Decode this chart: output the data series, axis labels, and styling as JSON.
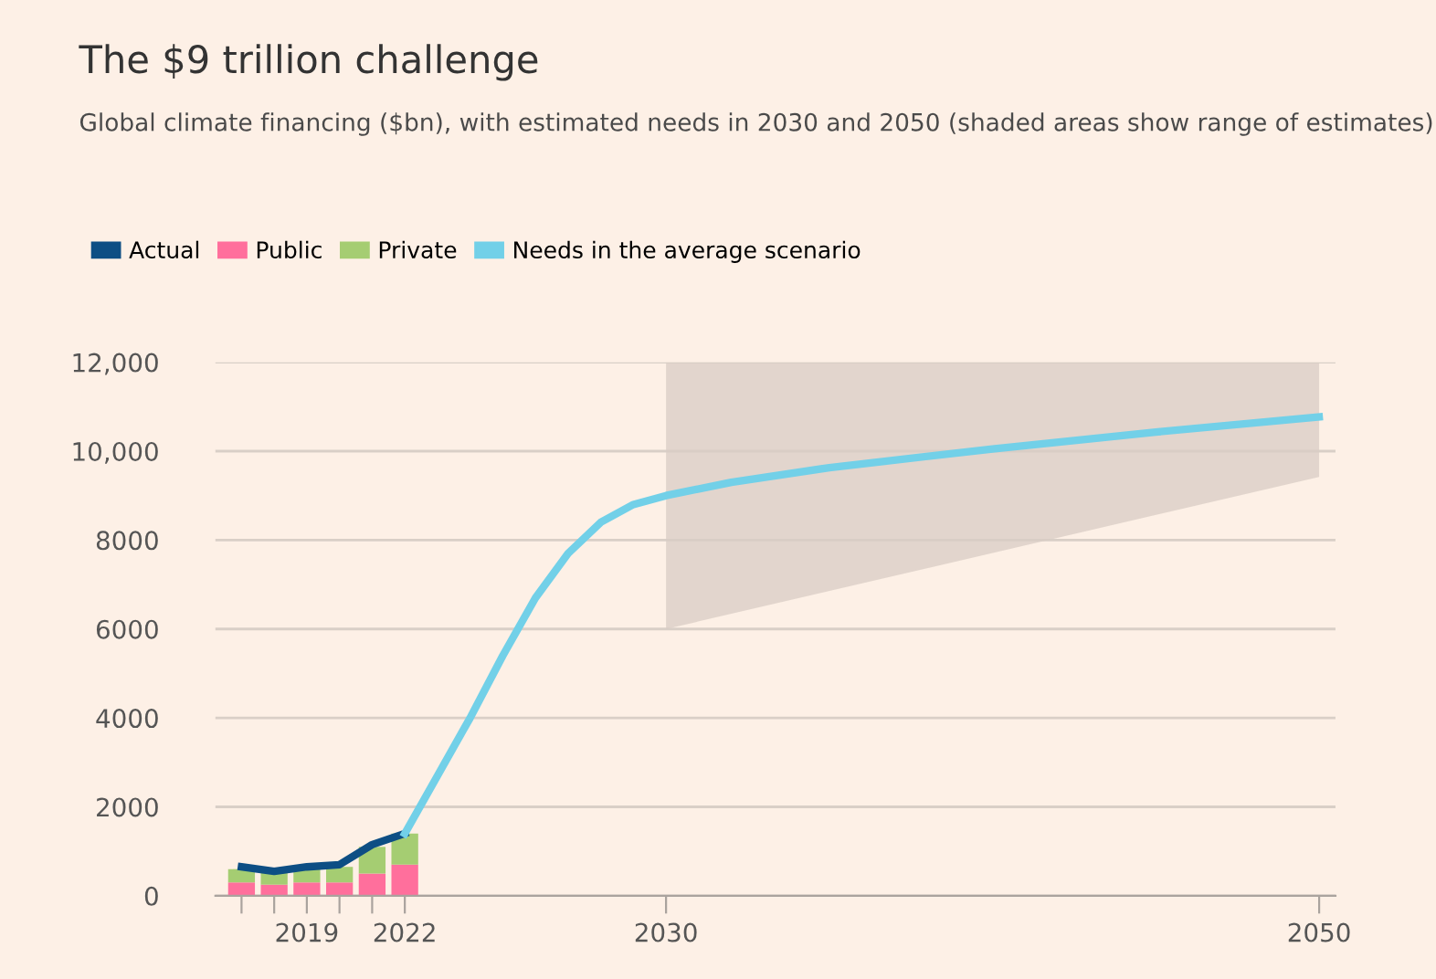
{
  "chart_data": {
    "type": "bar",
    "title": "The $9 trillion challenge",
    "subtitle": "Global climate financing ($bn), with estimated needs in 2030 and 2050 (shaded areas show range of estimates)",
    "stacked": true,
    "series": [
      {
        "name": "Actual",
        "type": "line",
        "color": "#0d4e84",
        "x": [
          2017,
          2018,
          2019,
          2020,
          2021,
          2022
        ],
        "values": [
          650,
          550,
          650,
          700,
          1150,
          1400
        ]
      },
      {
        "name": "Public",
        "color": "#ff6f9c",
        "x": [
          2017,
          2018,
          2019,
          2020,
          2021,
          2022
        ],
        "values": [
          300,
          250,
          300,
          300,
          500,
          700
        ]
      },
      {
        "name": "Private",
        "color": "#a5cd72",
        "x": [
          2017,
          2018,
          2019,
          2020,
          2021,
          2022
        ],
        "values": [
          300,
          300,
          300,
          350,
          600,
          700
        ]
      },
      {
        "name": "Needs in the average scenario",
        "type": "line",
        "color": "#72d0e8",
        "x": [
          2022,
          2023,
          2024,
          2025,
          2026,
          2027,
          2028,
          2029,
          2030,
          2032,
          2035,
          2040,
          2045,
          2050
        ],
        "values": [
          1400,
          2700,
          4000,
          5400,
          6700,
          7700,
          8400,
          8800,
          9000,
          9300,
          9630,
          10050,
          10430,
          10770
        ],
        "lower": [
          null,
          null,
          null,
          null,
          null,
          null,
          null,
          null,
          6000,
          null,
          null,
          null,
          null,
          9420
        ],
        "upper": [
          null,
          null,
          null,
          null,
          null,
          null,
          null,
          null,
          12000,
          null,
          null,
          null,
          null,
          12000
        ]
      }
    ],
    "xlim": [
      2016.2,
      2050.5
    ],
    "xticks": [
      {
        "value": 2017,
        "label": null
      },
      {
        "value": 2018,
        "label": null
      },
      2019,
      {
        "value": 2020,
        "label": null
      },
      {
        "value": 2021,
        "label": null
      },
      2022,
      2030,
      2050
    ],
    "ylim": [
      0,
      12000
    ],
    "yticks": [
      0,
      2000,
      4000,
      6000,
      8000,
      {
        "value": 10000,
        "label": "10,000"
      },
      {
        "value": 12000,
        "label": "12,000"
      }
    ],
    "grid": "y",
    "legend": "top left",
    "line_style": "solid",
    "marker": "none"
  }
}
